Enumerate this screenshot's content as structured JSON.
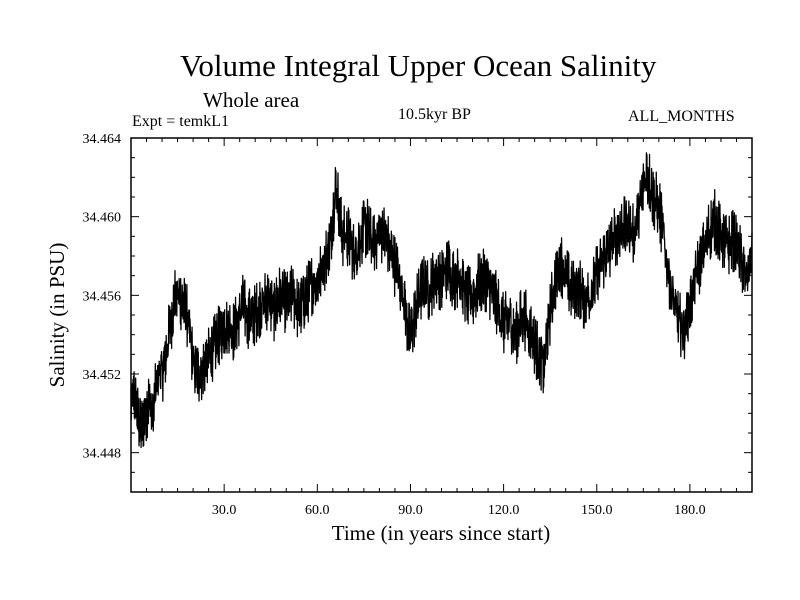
{
  "header": {
    "title": "Volume Integral Upper Ocean Salinity",
    "subtitle": "Whole area",
    "expt": "Expt = temkL1",
    "period": "10.5kyr BP",
    "months": "ALL_MONTHS"
  },
  "chart_data": {
    "type": "line",
    "title": "Volume Integral Upper Ocean Salinity",
    "xlabel": "Time (in years since start)",
    "ylabel": "Salinity (in PSU)",
    "xlim": [
      0,
      200
    ],
    "ylim": [
      34.446,
      34.464
    ],
    "x_ticks": [
      30,
      60,
      90,
      120,
      150,
      180
    ],
    "x_tick_labels": [
      "30.0",
      "60.0",
      "90.0",
      "120.0",
      "150.0",
      "180.0"
    ],
    "y_ticks": [
      34.448,
      34.452,
      34.456,
      34.46,
      34.464
    ],
    "y_tick_labels": [
      "34.448",
      "34.452",
      "34.456",
      "34.460",
      "34.464"
    ],
    "grid": false,
    "series": [
      {
        "name": "Salinity",
        "color": "#000000",
        "x": [
          0,
          1,
          2,
          3,
          5,
          6,
          7,
          8,
          9,
          10,
          11,
          12,
          13,
          14,
          15,
          16,
          17,
          18,
          19,
          20,
          22,
          25,
          28,
          30,
          33,
          36,
          38,
          40,
          42,
          44,
          46,
          48,
          50,
          52,
          54,
          56,
          58,
          60,
          62,
          64,
          65,
          66,
          67,
          68,
          70,
          72,
          74,
          76,
          78,
          80,
          82,
          84,
          86,
          88,
          89,
          90,
          92,
          94,
          96,
          98,
          100,
          102,
          104,
          106,
          108,
          110,
          112,
          114,
          116,
          118,
          120,
          122,
          124,
          126,
          128,
          130,
          132,
          133,
          134,
          136,
          138,
          140,
          142,
          144,
          146,
          148,
          150,
          152,
          154,
          156,
          158,
          160,
          162,
          164,
          165,
          166,
          167,
          168,
          170,
          172,
          174,
          176,
          178,
          180,
          182,
          184,
          186,
          188,
          190,
          192,
          194,
          196,
          198,
          200
        ],
        "values": [
          34.4505,
          34.451,
          34.45,
          34.4492,
          34.4502,
          34.4508,
          34.4496,
          34.4512,
          34.4522,
          34.452,
          34.4528,
          34.4538,
          34.4548,
          34.4558,
          34.456,
          34.4558,
          34.4555,
          34.455,
          34.454,
          34.4525,
          34.452,
          34.4528,
          34.4538,
          34.4545,
          34.4542,
          34.4555,
          34.4548,
          34.455,
          34.4556,
          34.4558,
          34.4552,
          34.456,
          34.4556,
          34.456,
          34.4552,
          34.4558,
          34.4565,
          34.4568,
          34.4575,
          34.4585,
          34.46,
          34.4615,
          34.4605,
          34.459,
          34.459,
          34.458,
          34.459,
          34.4595,
          34.4585,
          34.4592,
          34.459,
          34.458,
          34.457,
          34.456,
          34.4545,
          34.4538,
          34.4555,
          34.4565,
          34.4562,
          34.457,
          34.4568,
          34.4575,
          34.4568,
          34.457,
          34.456,
          34.4558,
          34.4566,
          34.4568,
          34.4562,
          34.4555,
          34.4545,
          34.4548,
          34.454,
          34.455,
          34.4545,
          34.4535,
          34.4528,
          34.4522,
          34.454,
          34.4562,
          34.4578,
          34.457,
          34.4562,
          34.4565,
          34.4558,
          34.456,
          34.457,
          34.4578,
          34.4582,
          34.459,
          34.4594,
          34.4595,
          34.459,
          34.4605,
          34.4615,
          34.4622,
          34.4618,
          34.461,
          34.4605,
          34.4585,
          34.4562,
          34.4548,
          34.4542,
          34.4555,
          34.457,
          34.458,
          34.4592,
          34.4598,
          34.459,
          34.4585,
          34.4588,
          34.4582,
          34.4568,
          34.458
        ]
      }
    ]
  }
}
